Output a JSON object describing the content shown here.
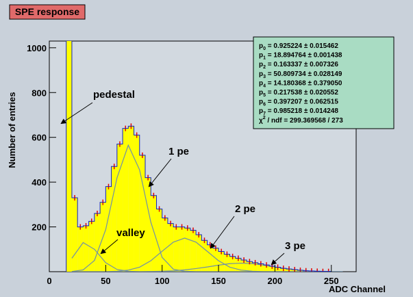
{
  "chart_data": {
    "type": "histogram",
    "title": "SPE response",
    "x_label": "ADC Channel",
    "y_label": "Number of entries",
    "bins": [
      15,
      20,
      25,
      30,
      35,
      40,
      45,
      50,
      55,
      60,
      65,
      70,
      75,
      80,
      85,
      90,
      95,
      100,
      105,
      110,
      115,
      120,
      125,
      130,
      135,
      140,
      145,
      150,
      155,
      160,
      165,
      170,
      175,
      180,
      185,
      190,
      195,
      200,
      205,
      210,
      215,
      220,
      225,
      230,
      235,
      240,
      245,
      250
    ],
    "values": [
      1100,
      330,
      200,
      205,
      225,
      260,
      310,
      380,
      470,
      570,
      640,
      650,
      610,
      520,
      420,
      340,
      280,
      240,
      215,
      200,
      200,
      195,
      185,
      165,
      140,
      120,
      105,
      90,
      78,
      68,
      60,
      52,
      45,
      40,
      35,
      30,
      25,
      20,
      15,
      12,
      9,
      6,
      4,
      3,
      2,
      1,
      1
    ],
    "color": "#ffff00",
    "marker_color": "#e00000",
    "components": {
      "color": "#7090a8",
      "x": [
        20,
        30,
        40,
        50,
        60,
        70,
        80,
        90,
        100,
        110,
        120,
        130,
        140,
        150,
        160,
        170,
        180,
        190,
        200,
        210,
        220,
        230,
        240,
        250,
        260
      ],
      "series": [
        {
          "values": [
            60,
            130,
            100,
            40,
            10,
            2,
            0,
            0,
            0,
            0,
            0,
            0,
            0,
            0,
            0,
            0,
            0,
            0,
            0,
            0,
            0,
            0,
            0,
            0,
            0
          ]
        },
        {
          "values": [
            1,
            8,
            50,
            188,
            419,
            565,
            455,
            221,
            64,
            11,
            2,
            0,
            0,
            0,
            0,
            0,
            0,
            0,
            0,
            0,
            0,
            0,
            0,
            0,
            0
          ]
        },
        {
          "values": [
            0,
            0,
            0,
            0,
            2,
            7,
            20,
            49,
            91,
            132,
            150,
            132,
            91,
            49,
            20,
            7,
            2,
            0,
            0,
            0,
            0,
            0,
            0,
            0,
            0
          ]
        },
        {
          "values": [
            0,
            0,
            0,
            0,
            0,
            0,
            0,
            1,
            2,
            4,
            8,
            14,
            21,
            29,
            36,
            38,
            36,
            29,
            21,
            14,
            8,
            4,
            2,
            1,
            0
          ]
        }
      ]
    },
    "xlim": [
      0,
      272
    ],
    "xticks": [
      0,
      50,
      100,
      150,
      200,
      250
    ],
    "ylim": [
      0,
      1030
    ],
    "yticks": [
      200,
      400,
      600,
      800,
      1000
    ],
    "annotations": [
      "pedestal",
      "1 pe",
      "valley",
      "2 pe",
      "3 pe"
    ],
    "stats": [
      {
        "name": "p",
        "sub": "0",
        "text": " = 0.925224 ± 0.015462"
      },
      {
        "name": "p",
        "sub": "1",
        "text": " = 18.894764 ± 0.001438"
      },
      {
        "name": "p",
        "sub": "2",
        "text": " = 0.163337 ± 0.007326"
      },
      {
        "name": "p",
        "sub": "3",
        "text": " = 50.809734 ± 0.028149"
      },
      {
        "name": "p",
        "sub": "4",
        "text": " = 14.180368 ± 0.379050"
      },
      {
        "name": "p",
        "sub": "5",
        "text": " = 0.217538 ± 0.020552"
      },
      {
        "name": "p",
        "sub": "6",
        "text": " = 0.397207 ± 0.062515"
      },
      {
        "name": "p",
        "sub": "7",
        "text": " = 0.985218 ± 0.014248"
      },
      {
        "name": "χ",
        "sup": "2",
        "text": " / ndf = 299.369568 / 273"
      }
    ]
  }
}
